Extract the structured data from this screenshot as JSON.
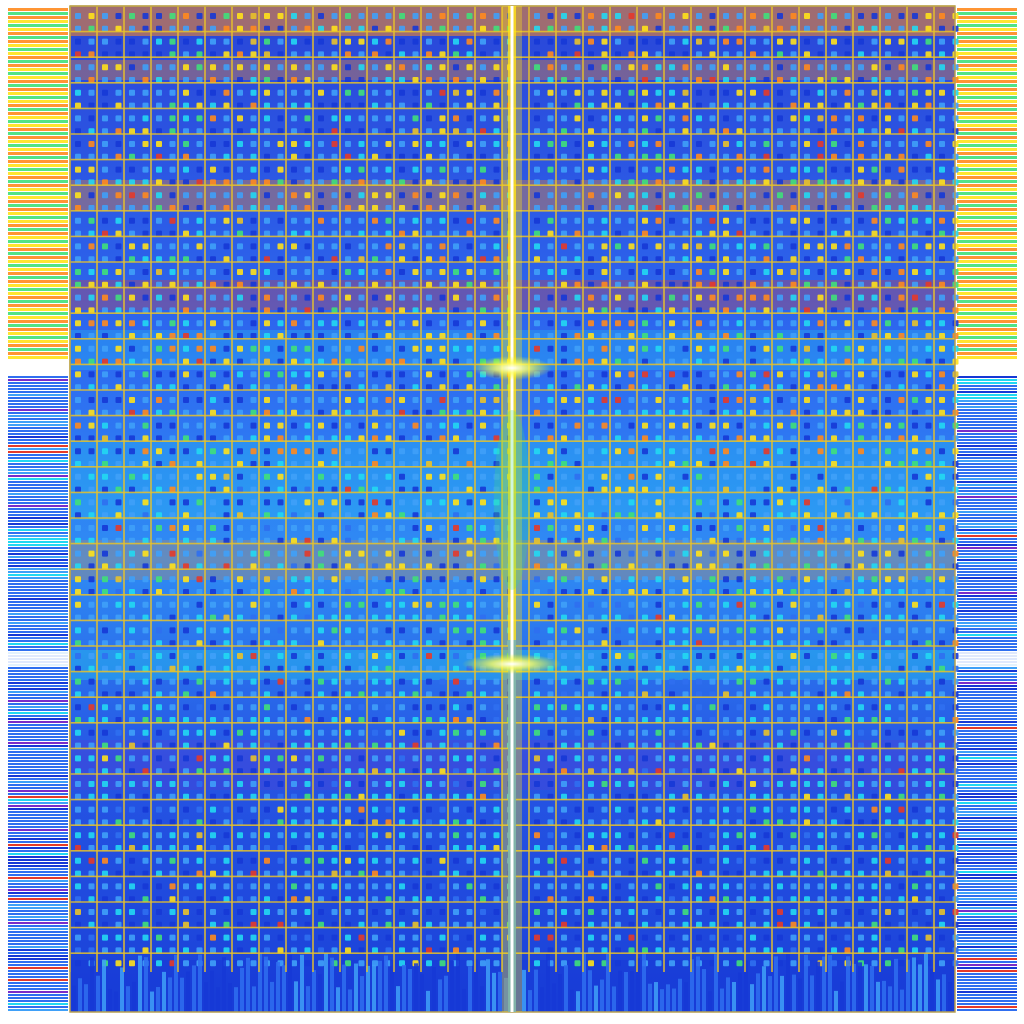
{
  "palette": {
    "background": "#ffffff",
    "deep_blue": "#1638d6",
    "mid_blue": "#2f6ff0",
    "light_blue": "#3fa0f8",
    "cyan": "#22d8f2",
    "green": "#3fe07a",
    "yellow": "#ffe21a",
    "gold": "#e8c22a",
    "orange": "#ff8a1e",
    "red": "#e43a2a",
    "purple": "#7a2cc8",
    "white_glow": "#ffffff"
  },
  "icons": {
    "artwork": "abstract-grid-pattern"
  }
}
